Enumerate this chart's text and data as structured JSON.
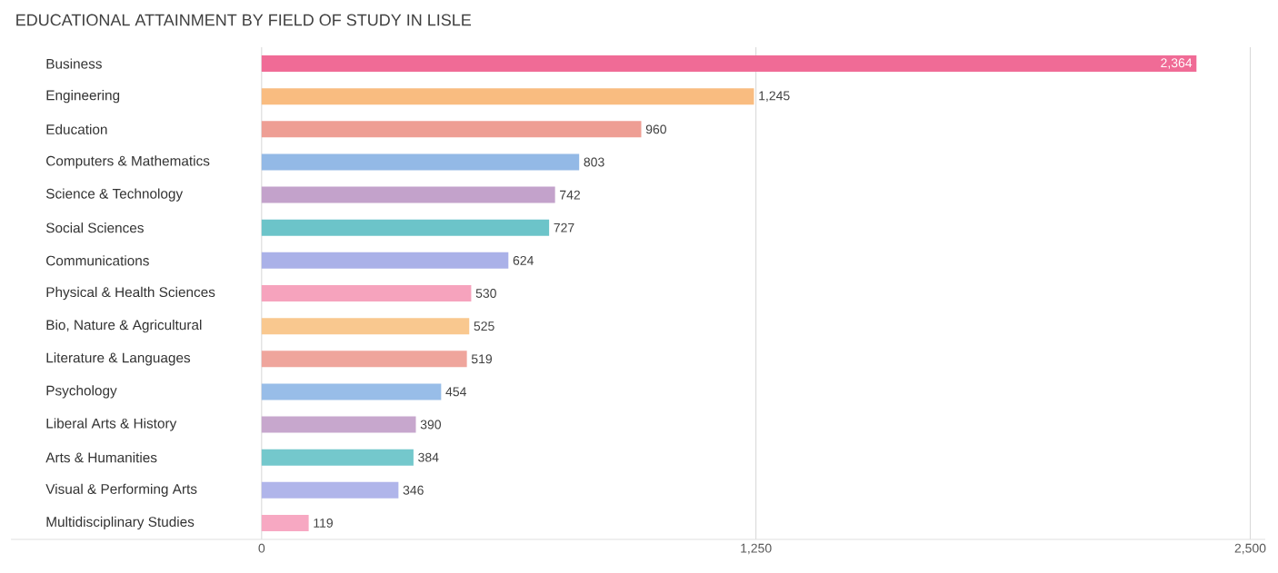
{
  "chart_data": {
    "type": "bar",
    "orientation": "horizontal",
    "title": "EDUCATIONAL ATTAINMENT BY FIELD OF STUDY IN LISLE",
    "categories": [
      "Business",
      "Engineering",
      "Education",
      "Computers & Mathematics",
      "Science & Technology",
      "Social Sciences",
      "Communications",
      "Physical & Health Sciences",
      "Bio, Nature & Agricultural",
      "Literature & Languages",
      "Psychology",
      "Liberal Arts & History",
      "Arts & Humanities",
      "Visual & Performing Arts",
      "Multidisciplinary Studies"
    ],
    "values": [
      2364,
      1245,
      960,
      803,
      742,
      727,
      624,
      530,
      525,
      519,
      454,
      390,
      384,
      346,
      119
    ],
    "value_labels": [
      "2,364",
      "1,245",
      "960",
      "803",
      "742",
      "727",
      "624",
      "530",
      "525",
      "519",
      "454",
      "390",
      "384",
      "346",
      "119"
    ],
    "colors": [
      "#f06b96",
      "#f9bc80",
      "#ee9e94",
      "#93b9e6",
      "#c3a2cb",
      "#6cc4c9",
      "#aab1e8",
      "#f6a3bd",
      "#f9c88f",
      "#efa59c",
      "#98bde8",
      "#c7a7cd",
      "#74c8cc",
      "#b0b5ea",
      "#f7a8c2"
    ],
    "xlim": [
      -634,
      2538
    ],
    "xticks": [
      0,
      {
        "value": 1250,
        "label": "1,250"
      },
      {
        "value": 2500,
        "label": "2,500"
      }
    ],
    "grid": "x"
  }
}
